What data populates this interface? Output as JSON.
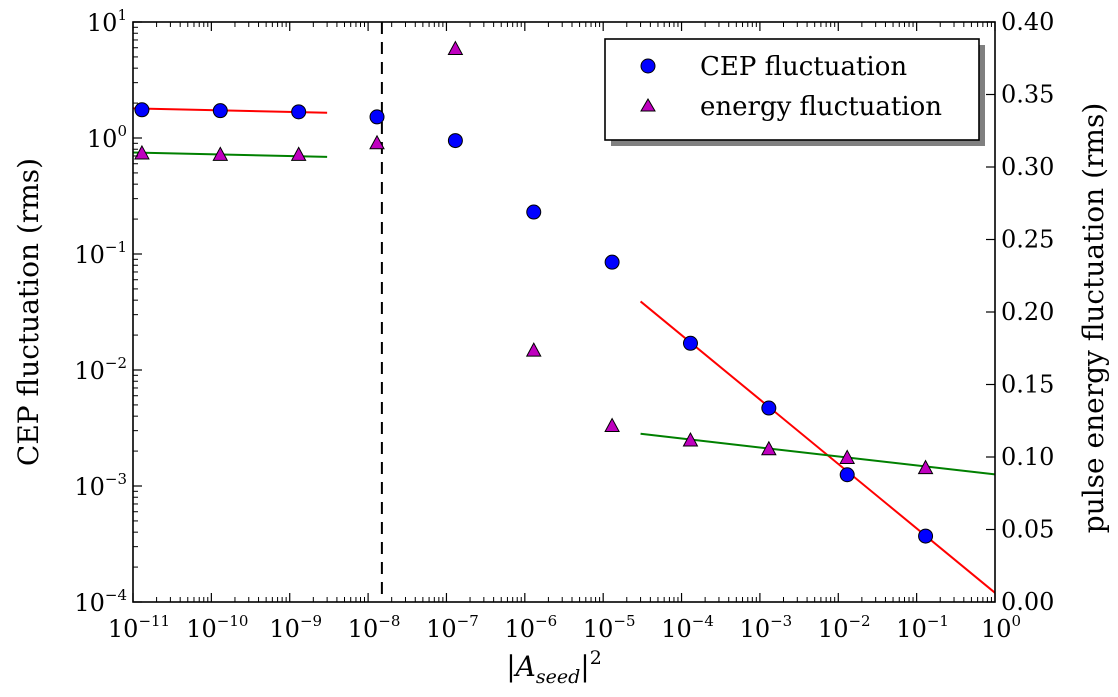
{
  "chart_data": {
    "type": "scatter",
    "xlabel": {
      "base": "|A",
      "sub": "seed",
      "close": "|",
      "sup": "2"
    },
    "ylabel_left": "CEP fluctuation (rms)",
    "ylabel_right": "pulse energy fluctuation (rms)",
    "x_scale": "log",
    "y_left_scale": "log",
    "y_right_scale": "linear",
    "xlim": [
      1e-11,
      1
    ],
    "ylim_left": [
      0.0001,
      10
    ],
    "ylim_right": [
      0.0,
      0.4
    ],
    "x_ticks": [
      {
        "base": "10",
        "exp": "−11",
        "value": 1e-11
      },
      {
        "base": "10",
        "exp": "−10",
        "value": 1e-10
      },
      {
        "base": "10",
        "exp": "−9",
        "value": 1e-09
      },
      {
        "base": "10",
        "exp": "−8",
        "value": 1e-08
      },
      {
        "base": "10",
        "exp": "−7",
        "value": 1e-07
      },
      {
        "base": "10",
        "exp": "−6",
        "value": 1e-06
      },
      {
        "base": "10",
        "exp": "−5",
        "value": 1e-05
      },
      {
        "base": "10",
        "exp": "−4",
        "value": 0.0001
      },
      {
        "base": "10",
        "exp": "−3",
        "value": 0.001
      },
      {
        "base": "10",
        "exp": "−2",
        "value": 0.01
      },
      {
        "base": "10",
        "exp": "−1",
        "value": 0.1
      },
      {
        "base": "10",
        "exp": "0",
        "value": 1
      }
    ],
    "y_left_ticks": [
      {
        "base": "10",
        "exp": "−4",
        "value": 0.0001
      },
      {
        "base": "10",
        "exp": "−3",
        "value": 0.001
      },
      {
        "base": "10",
        "exp": "−2",
        "value": 0.01
      },
      {
        "base": "10",
        "exp": "−1",
        "value": 0.1
      },
      {
        "base": "10",
        "exp": "0",
        "value": 1
      },
      {
        "base": "10",
        "exp": "1",
        "value": 10
      }
    ],
    "y_right_ticks": [
      {
        "label": "0.00",
        "value": 0.0
      },
      {
        "label": "0.05",
        "value": 0.05
      },
      {
        "label": "0.10",
        "value": 0.1
      },
      {
        "label": "0.15",
        "value": 0.15
      },
      {
        "label": "0.20",
        "value": 0.2
      },
      {
        "label": "0.25",
        "value": 0.25
      },
      {
        "label": "0.30",
        "value": 0.3
      },
      {
        "label": "0.35",
        "value": 0.35
      },
      {
        "label": "0.40",
        "value": 0.4
      }
    ],
    "series": [
      {
        "name": "CEP fluctuation",
        "axis": "left",
        "marker": "circle",
        "color": "#0000ff",
        "x": [
          1.3e-11,
          1.3e-10,
          1.3e-09,
          1.3e-08,
          1.3e-07,
          1.3e-06,
          1.3e-05,
          0.00013,
          0.0013,
          0.013,
          0.13
        ],
        "y": [
          1.75,
          1.72,
          1.68,
          1.52,
          0.95,
          0.23,
          0.085,
          0.017,
          0.0047,
          0.00125,
          0.00037
        ]
      },
      {
        "name": "energy fluctuation",
        "axis": "right",
        "marker": "triangle",
        "color": "#bf00bf",
        "x": [
          1.3e-11,
          1.3e-10,
          1.3e-09,
          1.3e-08,
          1.3e-07,
          1.3e-06,
          1.3e-05,
          0.00013,
          0.0013,
          0.013,
          0.13
        ],
        "y": [
          0.309,
          0.308,
          0.308,
          0.316,
          0.381,
          0.173,
          0.121,
          0.111,
          0.105,
          0.099,
          0.092
        ]
      }
    ],
    "fit_lines": [
      {
        "axis": "left",
        "color": "#ff0000",
        "x": [
          1e-11,
          3e-09
        ],
        "y": [
          1.8,
          1.65
        ]
      },
      {
        "axis": "right",
        "color": "#008000",
        "x": [
          1e-11,
          3e-09
        ],
        "y": [
          0.31,
          0.307
        ]
      },
      {
        "axis": "left",
        "color": "#ff0000",
        "x": [
          3e-05,
          1
        ],
        "y": [
          0.039,
          0.00012
        ]
      },
      {
        "axis": "right",
        "color": "#008000",
        "x": [
          3e-05,
          1
        ],
        "y": [
          0.116,
          0.088
        ]
      }
    ],
    "vline": {
      "x": 1.5e-08,
      "style": "dashed",
      "color": "#000000"
    },
    "legend_position": "top-right",
    "grid": false
  }
}
